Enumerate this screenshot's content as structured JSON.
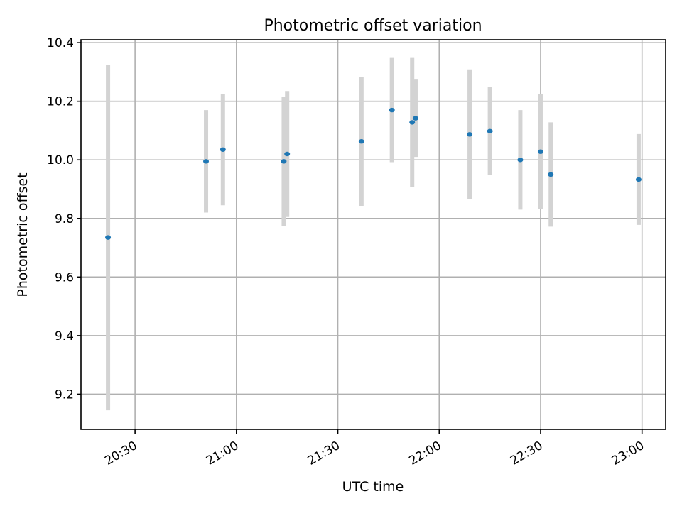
{
  "chart_data": {
    "type": "scatter",
    "title": "Photometric offset variation",
    "xlabel": "UTC time",
    "ylabel": "Photometric offset",
    "x_tick_labels": [
      "20:30",
      "21:00",
      "21:30",
      "22:00",
      "22:30",
      "23:00"
    ],
    "x_tick_values": [
      "20:30",
      "21:00",
      "21:30",
      "22:00",
      "22:30",
      "23:00"
    ],
    "xlim": [
      "20:14",
      "23:07"
    ],
    "y_tick_labels": [
      "9.2",
      "9.4",
      "9.6",
      "9.8",
      "10.0",
      "10.2",
      "10.4"
    ],
    "y_tick_values": [
      9.2,
      9.4,
      9.6,
      9.8,
      10.0,
      10.2,
      10.4
    ],
    "ylim": [
      9.08,
      10.41
    ],
    "grid": true,
    "colors": {
      "point": "#1f77b4",
      "errorbar": "#d3d3d3",
      "grid": "#b0b0b0"
    },
    "points": [
      {
        "x": "20:22",
        "y": 9.735,
        "yerr": 0.59
      },
      {
        "x": "20:51",
        "y": 9.995,
        "yerr": 0.175
      },
      {
        "x": "20:56",
        "y": 10.035,
        "yerr": 0.19
      },
      {
        "x": "21:14",
        "y": 9.995,
        "yerr": 0.22
      },
      {
        "x": "21:15",
        "y": 10.02,
        "yerr": 0.215
      },
      {
        "x": "21:37",
        "y": 10.063,
        "yerr": 0.22
      },
      {
        "x": "21:46",
        "y": 10.17,
        "yerr": 0.178
      },
      {
        "x": "21:52",
        "y": 10.128,
        "yerr": 0.22
      },
      {
        "x": "21:53",
        "y": 10.142,
        "yerr": 0.132
      },
      {
        "x": "22:09",
        "y": 10.087,
        "yerr": 0.222
      },
      {
        "x": "22:15",
        "y": 10.098,
        "yerr": 0.15
      },
      {
        "x": "22:24",
        "y": 10.0,
        "yerr": 0.17
      },
      {
        "x": "22:30",
        "y": 10.028,
        "yerr": 0.197
      },
      {
        "x": "22:33",
        "y": 9.95,
        "yerr": 0.178
      },
      {
        "x": "22:59",
        "y": 9.933,
        "yerr": 0.155
      }
    ]
  }
}
